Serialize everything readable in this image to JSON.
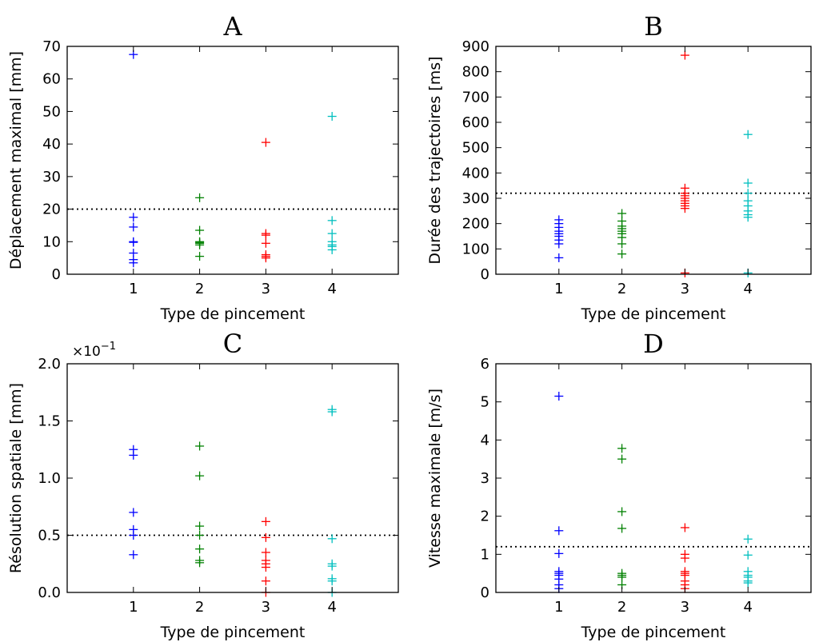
{
  "chart_data": [
    {
      "type": "scatter",
      "title": "A",
      "xlabel": "Type de pincement",
      "ylabel": "Déplacement maximal [mm]",
      "xlim": [
        0,
        5
      ],
      "ylim": [
        0,
        70
      ],
      "xticks": [
        "1",
        "2",
        "3",
        "4"
      ],
      "yticks": [
        "0",
        "10",
        "20",
        "30",
        "40",
        "50",
        "60",
        "70"
      ],
      "reference_line": 20,
      "grid": false,
      "marker": "+",
      "series": [
        {
          "x": 1,
          "color": "#0000ff",
          "values": [
            67.5,
            17.5,
            14.5,
            10.0,
            9.8,
            6.5,
            4.5,
            3.5
          ]
        },
        {
          "x": 2,
          "color": "#008000",
          "values": [
            23.5,
            13.5,
            10.0,
            9.8,
            9.5,
            9.0,
            5.5
          ]
        },
        {
          "x": 3,
          "color": "#ff0000",
          "values": [
            40.5,
            12.5,
            12.0,
            9.5,
            6.0,
            5.5,
            5.0
          ]
        },
        {
          "x": 4,
          "color": "#00bfbf",
          "values": [
            48.5,
            16.5,
            12.5,
            10.0,
            9.0,
            8.5,
            7.5
          ]
        }
      ]
    },
    {
      "type": "scatter",
      "title": "B",
      "xlabel": "Type de pincement",
      "ylabel": "Durée des trajectoires [ms]",
      "xlim": [
        0,
        5
      ],
      "ylim": [
        0,
        900
      ],
      "xticks": [
        "1",
        "2",
        "3",
        "4"
      ],
      "yticks": [
        "0",
        "100",
        "200",
        "300",
        "400",
        "500",
        "600",
        "700",
        "800",
        "900"
      ],
      "reference_line": 320,
      "grid": false,
      "marker": "+",
      "series": [
        {
          "x": 1,
          "color": "#0000ff",
          "values": [
            215,
            200,
            185,
            170,
            160,
            150,
            135,
            120,
            65
          ]
        },
        {
          "x": 2,
          "color": "#008000",
          "values": [
            240,
            210,
            190,
            180,
            170,
            160,
            145,
            120,
            80
          ]
        },
        {
          "x": 3,
          "color": "#ff0000",
          "values": [
            865,
            340,
            320,
            310,
            300,
            290,
            280,
            270,
            260,
            5
          ]
        },
        {
          "x": 4,
          "color": "#00bfbf",
          "values": [
            552,
            360,
            320,
            290,
            270,
            250,
            235,
            225,
            5
          ]
        }
      ]
    },
    {
      "type": "scatter",
      "title": "C",
      "xlabel": "Type de pincement",
      "ylabel": "Résolution spatiale [mm]",
      "offset_text": "×10",
      "offset_exponent": "−1",
      "xlim": [
        0,
        5
      ],
      "ylim": [
        0,
        2.0
      ],
      "xticks": [
        "1",
        "2",
        "3",
        "4"
      ],
      "yticks": [
        "0.0",
        "0.5",
        "1.0",
        "1.5",
        "2.0"
      ],
      "reference_line": 0.5,
      "grid": false,
      "marker": "+",
      "series": [
        {
          "x": 1,
          "color": "#0000ff",
          "values": [
            1.25,
            1.2,
            0.7,
            0.55,
            0.5,
            0.33
          ]
        },
        {
          "x": 2,
          "color": "#008000",
          "values": [
            1.28,
            1.02,
            0.58,
            0.5,
            0.38,
            0.28,
            0.26
          ]
        },
        {
          "x": 3,
          "color": "#ff0000",
          "values": [
            0.62,
            0.48,
            0.35,
            0.28,
            0.25,
            0.22,
            0.1,
            0.0
          ]
        },
        {
          "x": 4,
          "color": "#00bfbf",
          "values": [
            1.6,
            1.58,
            0.47,
            0.25,
            0.23,
            0.12,
            0.1,
            0.0
          ]
        }
      ]
    },
    {
      "type": "scatter",
      "title": "D",
      "xlabel": "Type de pincement",
      "ylabel": "Vitesse maximale [m/s]",
      "xlim": [
        0,
        5
      ],
      "ylim": [
        0,
        6
      ],
      "xticks": [
        "1",
        "2",
        "3",
        "4"
      ],
      "yticks": [
        "0",
        "1",
        "2",
        "3",
        "4",
        "5",
        "6"
      ],
      "reference_line": 1.2,
      "grid": false,
      "marker": "+",
      "series": [
        {
          "x": 1,
          "color": "#0000ff",
          "values": [
            5.15,
            1.62,
            1.02,
            0.55,
            0.5,
            0.45,
            0.35,
            0.2,
            0.1
          ]
        },
        {
          "x": 2,
          "color": "#008000",
          "values": [
            3.78,
            3.5,
            2.12,
            1.68,
            0.5,
            0.45,
            0.4,
            0.2
          ]
        },
        {
          "x": 3,
          "color": "#ff0000",
          "values": [
            1.7,
            1.0,
            0.9,
            0.55,
            0.5,
            0.45,
            0.3,
            0.2,
            0.1
          ]
        },
        {
          "x": 4,
          "color": "#00bfbf",
          "values": [
            1.4,
            0.98,
            0.55,
            0.45,
            0.4,
            0.3,
            0.25
          ]
        }
      ]
    }
  ]
}
